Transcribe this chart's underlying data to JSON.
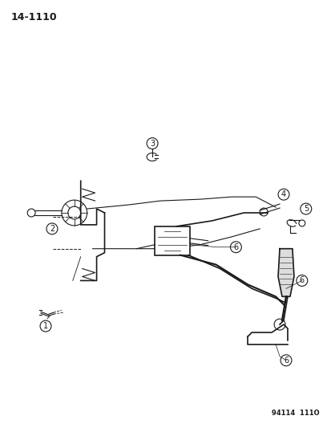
{
  "page_num": "14-1110",
  "footer": "94114  111O",
  "bg_color": "#ffffff",
  "line_color": "#1a1a1a",
  "part_labels": [
    "1",
    "2",
    "3",
    "4",
    "5",
    "6",
    "6",
    "6"
  ],
  "figsize": [
    4.14,
    5.33
  ],
  "dpi": 100
}
